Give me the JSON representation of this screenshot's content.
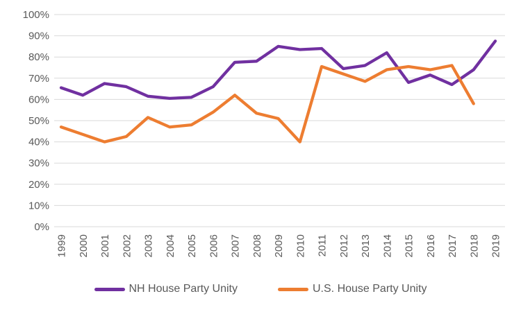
{
  "chart_data": {
    "type": "line",
    "x": [
      "1999",
      "2000",
      "2001",
      "2002",
      "2003",
      "2004",
      "2005",
      "2006",
      "2007",
      "2008",
      "2009",
      "2010",
      "2011",
      "2012",
      "2013",
      "2014",
      "2015",
      "2016",
      "2017",
      "2018",
      "2019"
    ],
    "series": [
      {
        "name": "NH House Party Unity",
        "color": "#7030A0",
        "values": [
          65.5,
          62,
          67.5,
          66,
          61.5,
          60.5,
          61,
          66,
          77.5,
          78,
          85,
          83.5,
          84,
          74.5,
          76,
          82,
          68,
          71.5,
          67,
          74,
          87.5
        ]
      },
      {
        "name": "U.S. House Party Unity",
        "color": "#ED7D31",
        "values": [
          47,
          43.5,
          40,
          42.5,
          51.5,
          47,
          48,
          54,
          62,
          53.5,
          51,
          40,
          75.5,
          72,
          68.5,
          74,
          75.5,
          74,
          76,
          58,
          null
        ]
      }
    ],
    "title": "",
    "xlabel": "",
    "ylabel": "",
    "ylim": [
      0,
      100
    ],
    "ytick_labels": [
      "0%",
      "10%",
      "20%",
      "30%",
      "40%",
      "50%",
      "60%",
      "70%",
      "80%",
      "90%",
      "100%"
    ],
    "grid": "horizontal",
    "legend_position": "bottom"
  },
  "styles": {
    "grid_color": "#D9D9D9",
    "tick_text_color": "#595959",
    "legend_text_color": "#595959",
    "background": "#FFFFFF",
    "line_width": 4.3
  }
}
